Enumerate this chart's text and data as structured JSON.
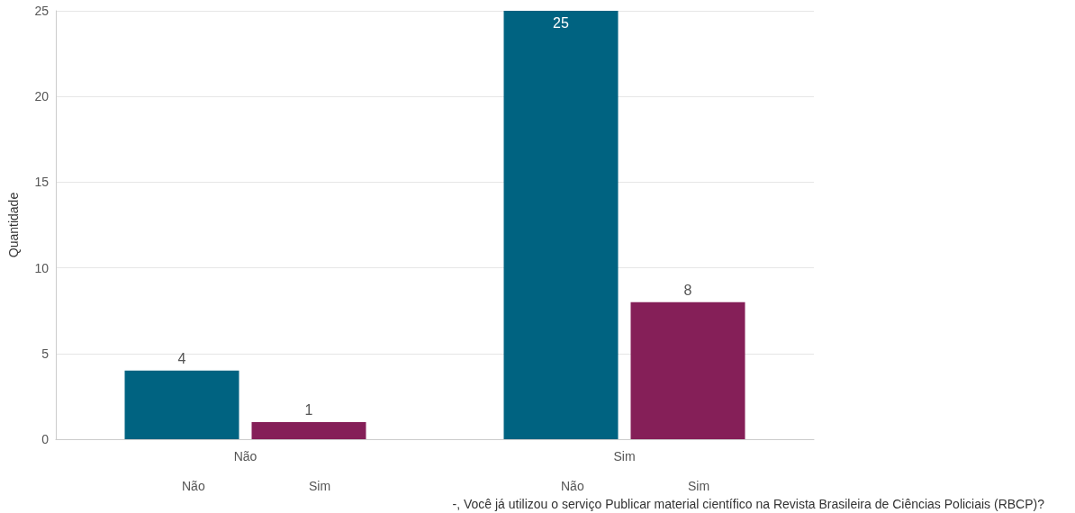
{
  "chart_data": {
    "type": "bar",
    "ylabel": "Quantidade",
    "xlabel": "-, Você já utilizou o serviço Publicar material científico na Revista Brasileira de Ciências Policiais (RBCP)?",
    "categories": [
      "Não",
      "Sim"
    ],
    "series": [
      {
        "name": "Não",
        "color": "#006381",
        "values": [
          4,
          25
        ]
      },
      {
        "name": "Sim",
        "color": "#851f58",
        "values": [
          1,
          8
        ]
      }
    ],
    "ylim": [
      0,
      25
    ],
    "yticks": [
      0,
      5,
      10,
      15,
      20,
      25
    ],
    "grid": "y",
    "legend": false,
    "data_labels": true
  }
}
